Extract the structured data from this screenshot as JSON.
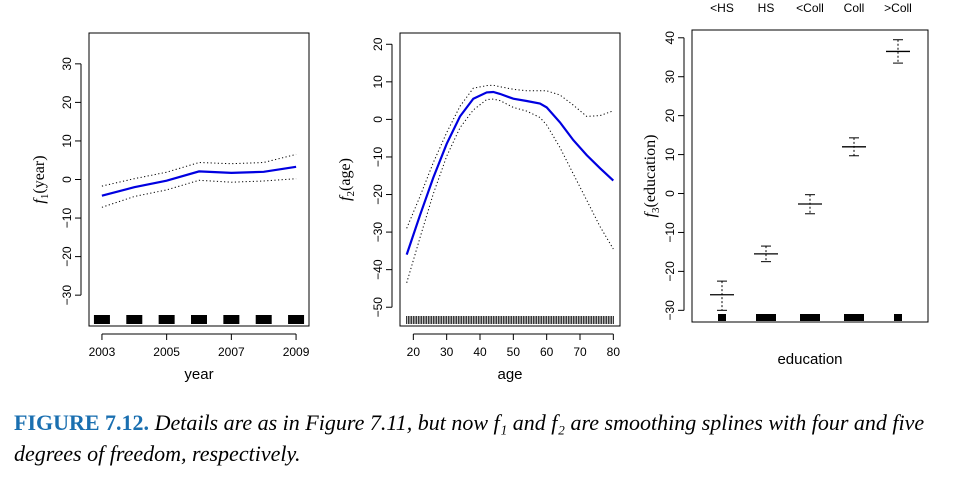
{
  "chart_data": [
    {
      "type": "line",
      "xlabel": "year",
      "ylabel_fn": "f",
      "ylabel_sub": "1",
      "ylabel_arg": "(year)",
      "xlim": [
        2002.6,
        2009.4
      ],
      "ylim": [
        -38,
        38
      ],
      "xticks": [
        "2003",
        "2005",
        "2007",
        "2009"
      ],
      "yticks": [
        "−30",
        "−20",
        "−10",
        "0",
        "10",
        "20",
        "30"
      ],
      "x": [
        2003,
        2004,
        2005,
        2006,
        2007,
        2008,
        2009
      ],
      "fit": [
        -4.2,
        -2.0,
        -0.3,
        2.1,
        1.7,
        2.0,
        3.3
      ],
      "upper": [
        -1.7,
        0.2,
        1.9,
        4.4,
        4.1,
        4.4,
        6.5
      ],
      "lower": [
        -7.2,
        -4.4,
        -2.7,
        -0.2,
        -0.7,
        -0.4,
        0.2
      ],
      "rug": [
        2003,
        2004,
        2005,
        2006,
        2007,
        2008,
        2009
      ]
    },
    {
      "type": "line",
      "xlabel": "age",
      "ylabel_fn": "f",
      "ylabel_sub": "2",
      "ylabel_arg": "(age)",
      "xlim": [
        16,
        82
      ],
      "ylim": [
        -55,
        23
      ],
      "xticks": [
        "20",
        "30",
        "40",
        "50",
        "60",
        "70",
        "80"
      ],
      "yticks": [
        "−50",
        "−40",
        "−30",
        "−20",
        "−10",
        "0",
        "10",
        "20"
      ],
      "x": [
        18,
        22,
        26,
        30,
        34,
        38,
        42,
        44,
        46,
        50,
        54,
        58,
        60,
        64,
        68,
        72,
        76,
        80
      ],
      "fit": [
        -36,
        -25.5,
        -15.5,
        -6.5,
        0.8,
        5.5,
        7.2,
        7.3,
        6.8,
        5.5,
        4.9,
        4.2,
        3.2,
        -0.8,
        -5.5,
        -9.5,
        -13,
        -16.3
      ],
      "upper": [
        -29,
        -20.5,
        -11.5,
        -3.5,
        3.5,
        8.3,
        9.0,
        9.1,
        8.7,
        8.0,
        7.6,
        7.6,
        7.6,
        6.5,
        3.8,
        0.8,
        1.0,
        2.3
      ],
      "lower": [
        -43.5,
        -31.5,
        -19.8,
        -9.8,
        -2.2,
        2.5,
        5.3,
        5.4,
        5.0,
        3.2,
        2.2,
        0.5,
        -1.5,
        -7.5,
        -14.5,
        -21.5,
        -28.5,
        -34.5
      ],
      "rug_range": [
        18,
        80
      ]
    },
    {
      "type": "bar",
      "xlabel": "education",
      "ylabel_fn": "f",
      "ylabel_sub": "3",
      "ylabel_arg": "(education)",
      "ylim": [
        -33,
        42
      ],
      "yticks": [
        "−30",
        "−20",
        "−10",
        "0",
        "10",
        "20",
        "30",
        "40"
      ],
      "categories": [
        "<HS",
        "HS",
        "<Coll",
        "Coll",
        ">Coll"
      ],
      "values": [
        -26,
        -15.5,
        -2.7,
        12,
        36.5
      ],
      "upper": [
        -22.5,
        -13.5,
        -0.3,
        14.3,
        39.5
      ],
      "lower": [
        -30,
        -17.5,
        -5.2,
        9.7,
        33.5
      ],
      "rug": [
        -32,
        -32,
        -32,
        -32,
        -32
      ]
    }
  ],
  "caption": {
    "label": "FIGURE 7.12.",
    "text": "Details are as in Figure 7.11, but now f₁ and f₂ are smoothing splines with four and five degrees of freedom, respectively."
  },
  "colors": {
    "fit": "#0000e0",
    "band": "#000000",
    "caption_label": "#1a6fb0"
  }
}
